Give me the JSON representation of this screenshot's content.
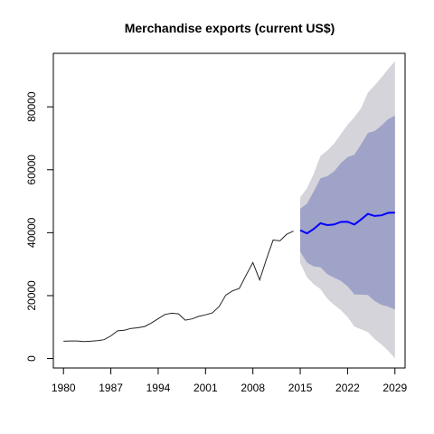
{
  "chart_data": {
    "type": "line",
    "title": "Merchandise exports (current US$)",
    "xlabel": "",
    "ylabel": "",
    "xlim": [
      1978.5,
      2030.5
    ],
    "ylim": [
      -3000,
      97000
    ],
    "x_ticks": [
      1980,
      1987,
      1994,
      2001,
      2008,
      2015,
      2022,
      2029
    ],
    "y_ticks": [
      0,
      20000,
      40000,
      60000,
      80000
    ],
    "grid": false,
    "colors": {
      "history": "#222222",
      "forecast": "#0000ff",
      "band80": "#a0a3c8",
      "band95": "#d4d4da"
    },
    "series": [
      {
        "role": "history",
        "x": [
          1980,
          1981,
          1982,
          1983,
          1984,
          1985,
          1986,
          1987,
          1988,
          1989,
          1990,
          1991,
          1992,
          1993,
          1994,
          1995,
          1996,
          1997,
          1998,
          1999,
          2000,
          2001,
          2002,
          2003,
          2004,
          2005,
          2006,
          2007,
          2008,
          2009,
          2010,
          2011,
          2012,
          2013,
          2014
        ],
        "values": [
          5500,
          5600,
          5600,
          5400,
          5500,
          5700,
          6000,
          7200,
          8800,
          9000,
          9600,
          9800,
          10200,
          11300,
          12700,
          14000,
          14400,
          14200,
          12200,
          12600,
          13400,
          13900,
          14500,
          16500,
          20200,
          21500,
          22300,
          26500,
          30500,
          25000,
          31500,
          37700,
          37400,
          39500,
          40500
        ]
      },
      {
        "role": "forecast",
        "x": [
          2015,
          2016,
          2017,
          2018,
          2019,
          2020,
          2021,
          2022,
          2023,
          2024,
          2025,
          2026,
          2027,
          2028,
          2029
        ],
        "values": [
          40800,
          39800,
          41200,
          43000,
          42400,
          42600,
          43400,
          43500,
          42600,
          44200,
          46000,
          45300,
          45500,
          46300,
          46400
        ],
        "lo80": [
          34000,
          30500,
          29300,
          29000,
          26800,
          25700,
          24700,
          23000,
          20400,
          20300,
          20200,
          18300,
          17100,
          16500,
          15600
        ],
        "hi80": [
          47600,
          49200,
          53100,
          57300,
          58000,
          59500,
          62100,
          64000,
          64800,
          68100,
          71700,
          72300,
          74000,
          76100,
          77200
        ],
        "lo95": [
          30400,
          25800,
          23600,
          22100,
          19000,
          17100,
          15400,
          13200,
          10200,
          9300,
          8400,
          6200,
          4500,
          2500,
          100
        ],
        "hi95": [
          51200,
          54100,
          58700,
          64400,
          66100,
          68300,
          71300,
          74300,
          76700,
          79600,
          84500,
          86800,
          89300,
          92000,
          94500
        ]
      }
    ]
  }
}
